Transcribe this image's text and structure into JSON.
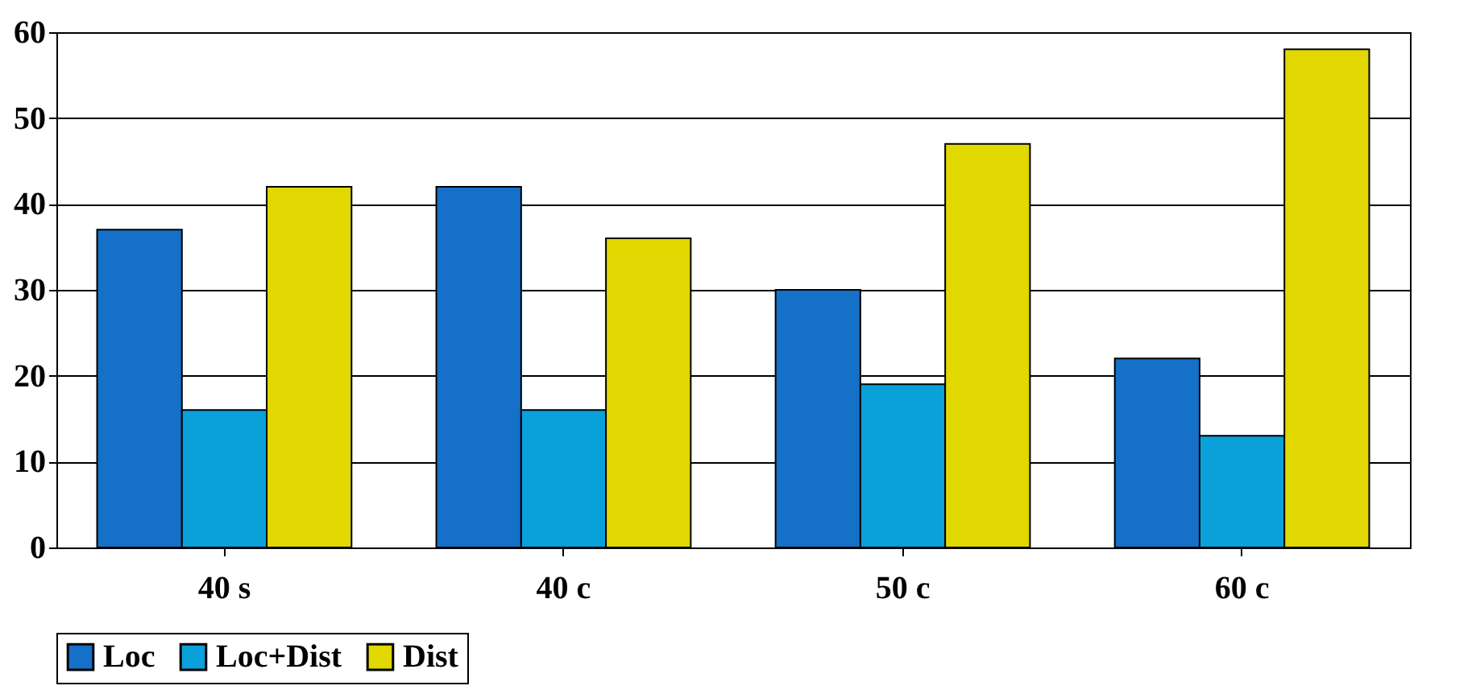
{
  "chart_data": {
    "type": "bar",
    "categories": [
      "40 s",
      "40 c",
      "50 c",
      "60 c"
    ],
    "series": [
      {
        "name": "Loc",
        "color": "#1570c8",
        "values": [
          37,
          42,
          30,
          22
        ]
      },
      {
        "name": "Loc+Dist",
        "color": "#0aa0da",
        "values": [
          16,
          16,
          19,
          13
        ]
      },
      {
        "name": "Dist",
        "color": "#e0d800",
        "values": [
          42,
          36,
          47,
          58
        ]
      }
    ],
    "ylim": [
      0,
      60
    ],
    "yticks": [
      0,
      10,
      20,
      30,
      40,
      50,
      60
    ],
    "grid": "y",
    "legend": "bottom"
  }
}
